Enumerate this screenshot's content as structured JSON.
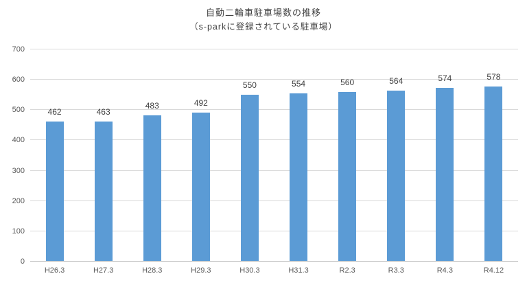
{
  "chart": {
    "title": "自動二輪車駐車場数の推移",
    "subtitle": "（s-parkに登録されている駐車場）"
  },
  "chart_data": {
    "type": "bar",
    "title": "自動二輪車駐車場数の推移",
    "subtitle": "（s-parkに登録されている駐車場）",
    "categories": [
      "H26.3",
      "H27.3",
      "H28.3",
      "H29.3",
      "H30.3",
      "H31.3",
      "R2.3",
      "R3.3",
      "R4.3",
      "R4.12"
    ],
    "values": [
      462,
      463,
      483,
      492,
      550,
      554,
      560,
      564,
      574,
      578
    ],
    "xlabel": "",
    "ylabel": "",
    "ylim": [
      0,
      700
    ],
    "y_ticks": [
      0,
      100,
      200,
      300,
      400,
      500,
      600,
      700
    ],
    "grid": true,
    "legend": false,
    "data_labels": true,
    "colors": {
      "bar_fill": "#5b9bd5",
      "gridline": "#d9d9d9",
      "axis_line": "#bfbfbf",
      "tick_text": "#595959",
      "label_text": "#404040",
      "background": "#ffffff"
    }
  }
}
